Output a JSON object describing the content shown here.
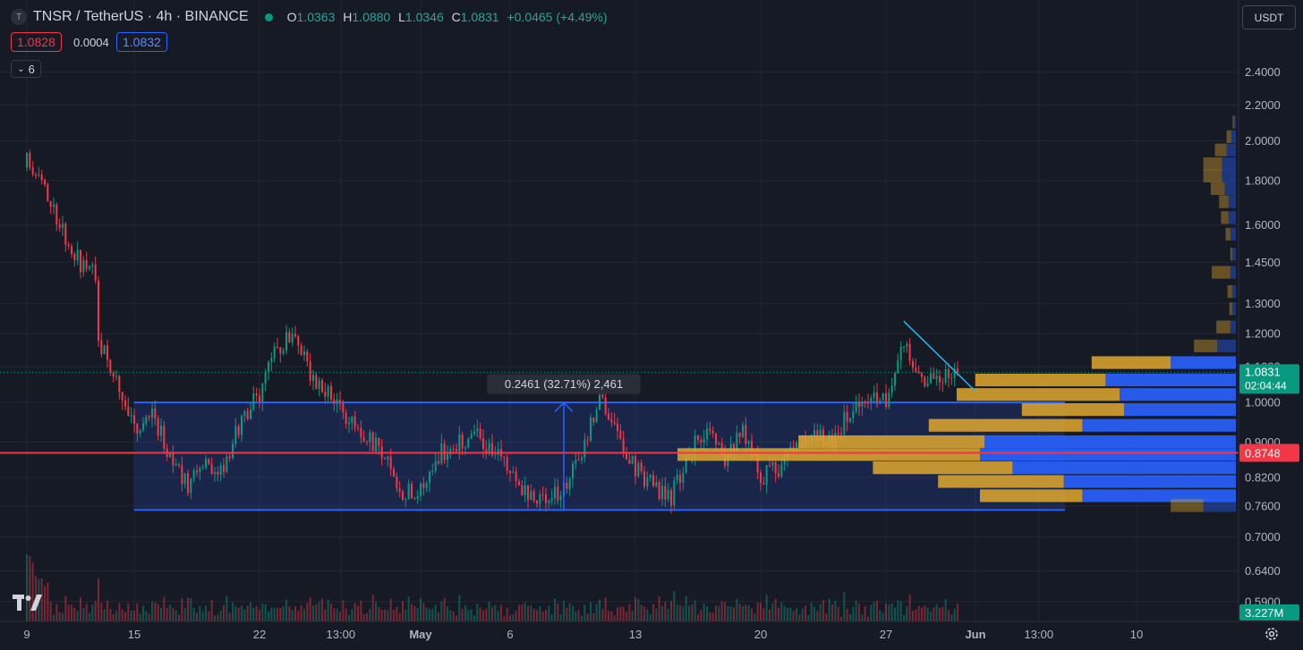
{
  "header": {
    "symbol_icon": "T",
    "title": "TNSR / TetherUS · 4h · BINANCE",
    "o_label": "O",
    "o": "1.0363",
    "h_label": "H",
    "h": "1.0880",
    "l_label": "L",
    "l": "1.0346",
    "c_label": "C",
    "c": "1.0831",
    "change": "+0.0465 (+4.49%)",
    "bid": "1.0828",
    "spread": "0.0004",
    "ask": "1.0832",
    "indicators_count": "6",
    "currency": "USDT",
    "market_open_color": "#089981"
  },
  "chart_data": {
    "type": "candlestick",
    "x_range": [
      "2024-04-08",
      "2024-06-12"
    ],
    "y_scale": "log",
    "y_range": [
      0.58,
      2.55
    ],
    "x_tick_labels": [
      "9",
      "15",
      "22",
      "13:00",
      "May",
      "6",
      "13",
      "20",
      "27",
      "Jun",
      "13:00",
      "10"
    ],
    "y_tick_labels": [
      "2.4000",
      "2.2000",
      "2.0000",
      "1.8000",
      "1.6000",
      "1.4500",
      "1.3000",
      "1.2000",
      "1.1000",
      "1.0000",
      "0.9000",
      "0.8200",
      "0.7600",
      "0.7000",
      "0.6400",
      "0.5900"
    ],
    "price_path": [
      [
        "2024-04-09",
        0.8
      ],
      [
        "2024-04-09",
        1.9
      ],
      [
        "2024-04-10",
        1.76
      ],
      [
        "2024-04-11",
        1.58
      ],
      [
        "2024-04-12",
        1.44
      ],
      [
        "2024-04-13",
        1.4
      ],
      [
        "2024-04-13",
        1.18
      ],
      [
        "2024-04-14",
        1.05
      ],
      [
        "2024-04-15",
        0.93
      ],
      [
        "2024-04-16",
        0.98
      ],
      [
        "2024-04-17",
        0.86
      ],
      [
        "2024-04-18",
        0.8
      ],
      [
        "2024-04-19",
        0.85
      ],
      [
        "2024-04-20",
        0.84
      ],
      [
        "2024-04-21",
        0.96
      ],
      [
        "2024-04-22",
        1.02
      ],
      [
        "2024-04-23",
        1.16
      ],
      [
        "2024-04-24",
        1.2
      ],
      [
        "2024-04-25",
        1.06
      ],
      [
        "2024-04-26",
        1.02
      ],
      [
        "2024-04-27",
        0.95
      ],
      [
        "2024-04-28",
        0.92
      ],
      [
        "2024-04-29",
        0.86
      ],
      [
        "2024-04-30",
        0.78
      ],
      [
        "2024-05-01",
        0.8
      ],
      [
        "2024-05-02",
        0.87
      ],
      [
        "2024-05-03",
        0.9
      ],
      [
        "2024-05-04",
        0.92
      ],
      [
        "2024-05-05",
        0.88
      ],
      [
        "2024-05-06",
        0.84
      ],
      [
        "2024-05-07",
        0.78
      ],
      [
        "2024-05-08",
        0.77
      ],
      [
        "2024-05-09",
        0.8
      ],
      [
        "2024-05-10",
        0.86
      ],
      [
        "2024-05-11",
        1.03
      ],
      [
        "2024-05-12",
        0.92
      ],
      [
        "2024-05-13",
        0.84
      ],
      [
        "2024-05-14",
        0.8
      ],
      [
        "2024-05-15",
        0.78
      ],
      [
        "2024-05-16",
        0.88
      ],
      [
        "2024-05-17",
        0.93
      ],
      [
        "2024-05-18",
        0.85
      ],
      [
        "2024-05-19",
        0.94
      ],
      [
        "2024-05-20",
        0.82
      ],
      [
        "2024-05-21",
        0.84
      ],
      [
        "2024-05-22",
        0.9
      ],
      [
        "2024-05-23",
        0.92
      ],
      [
        "2024-05-24",
        0.9
      ],
      [
        "2024-05-25",
        0.98
      ],
      [
        "2024-05-26",
        1.02
      ],
      [
        "2024-05-27",
        1.0
      ],
      [
        "2024-05-28",
        1.16
      ],
      [
        "2024-05-29",
        1.07
      ],
      [
        "2024-05-30",
        1.06
      ],
      [
        "2024-05-31",
        1.0831
      ]
    ],
    "range_box": {
      "top": 1.0,
      "bottom": 0.752,
      "start": "2024-04-15",
      "end": "2024-06-06"
    },
    "measure": {
      "label": "0.2461 (32.71%) 2,461",
      "from": 0.752,
      "to": 0.999,
      "date": "2024-05-09"
    },
    "trendline": {
      "from": [
        "2024-05-28",
        1.24
      ],
      "to": [
        "2024-06-01",
        1.03
      ]
    },
    "horizontal_line": {
      "price": 0.8748,
      "label": "0.8748",
      "color": "#f23645"
    },
    "last_price": {
      "price": 1.0831,
      "label": "1.0831",
      "countdown": "02:04:44",
      "color": "#089981"
    },
    "volume_label": "3.227M",
    "volume_profile": [
      {
        "price": 2.1,
        "up": 0.004,
        "down": 0.003
      },
      {
        "price": 2.02,
        "up": 0.01,
        "down": 0.01
      },
      {
        "price": 1.95,
        "up": 0.02,
        "down": 0.025
      },
      {
        "price": 1.88,
        "up": 0.03,
        "down": 0.04
      },
      {
        "price": 1.82,
        "up": 0.03,
        "down": 0.04
      },
      {
        "price": 1.76,
        "up": 0.024,
        "down": 0.03
      },
      {
        "price": 1.7,
        "up": 0.016,
        "down": 0.02
      },
      {
        "price": 1.63,
        "up": 0.016,
        "down": 0.016
      },
      {
        "price": 1.56,
        "up": 0.012,
        "down": 0.01
      },
      {
        "price": 1.48,
        "up": 0.008,
        "down": 0.004
      },
      {
        "price": 1.41,
        "up": 0.012,
        "down": 0.04
      },
      {
        "price": 1.34,
        "up": 0.008,
        "down": 0.01
      },
      {
        "price": 1.28,
        "up": 0.008,
        "down": 0.006
      },
      {
        "price": 1.22,
        "up": 0.012,
        "down": 0.03
      },
      {
        "price": 1.16,
        "up": 0.04,
        "down": 0.05
      },
      {
        "price": 1.11,
        "up": 0.14,
        "down": 0.17
      },
      {
        "price": 1.06,
        "up": 0.28,
        "down": 0.28
      },
      {
        "price": 1.02,
        "up": 0.25,
        "down": 0.35
      },
      {
        "price": 0.98,
        "up": 0.24,
        "down": 0.22
      },
      {
        "price": 0.94,
        "up": 0.33,
        "down": 0.33
      },
      {
        "price": 0.9,
        "up": 0.54,
        "down": 0.4
      },
      {
        "price": 0.87,
        "up": 0.55,
        "down": 0.65
      },
      {
        "price": 0.84,
        "up": 0.48,
        "down": 0.3
      },
      {
        "price": 0.81,
        "up": 0.37,
        "down": 0.27
      },
      {
        "price": 0.78,
        "up": 0.33,
        "down": 0.22
      },
      {
        "price": 0.76,
        "up": 0.07,
        "down": 0.07
      }
    ],
    "colors": {
      "up": "#089981",
      "down": "#f23645",
      "background": "#161a25",
      "grid": "#232733",
      "range_line": "#2962ff",
      "profile_up": "#2962ff",
      "profile_down": "#e0a82e"
    },
    "grid": true
  }
}
